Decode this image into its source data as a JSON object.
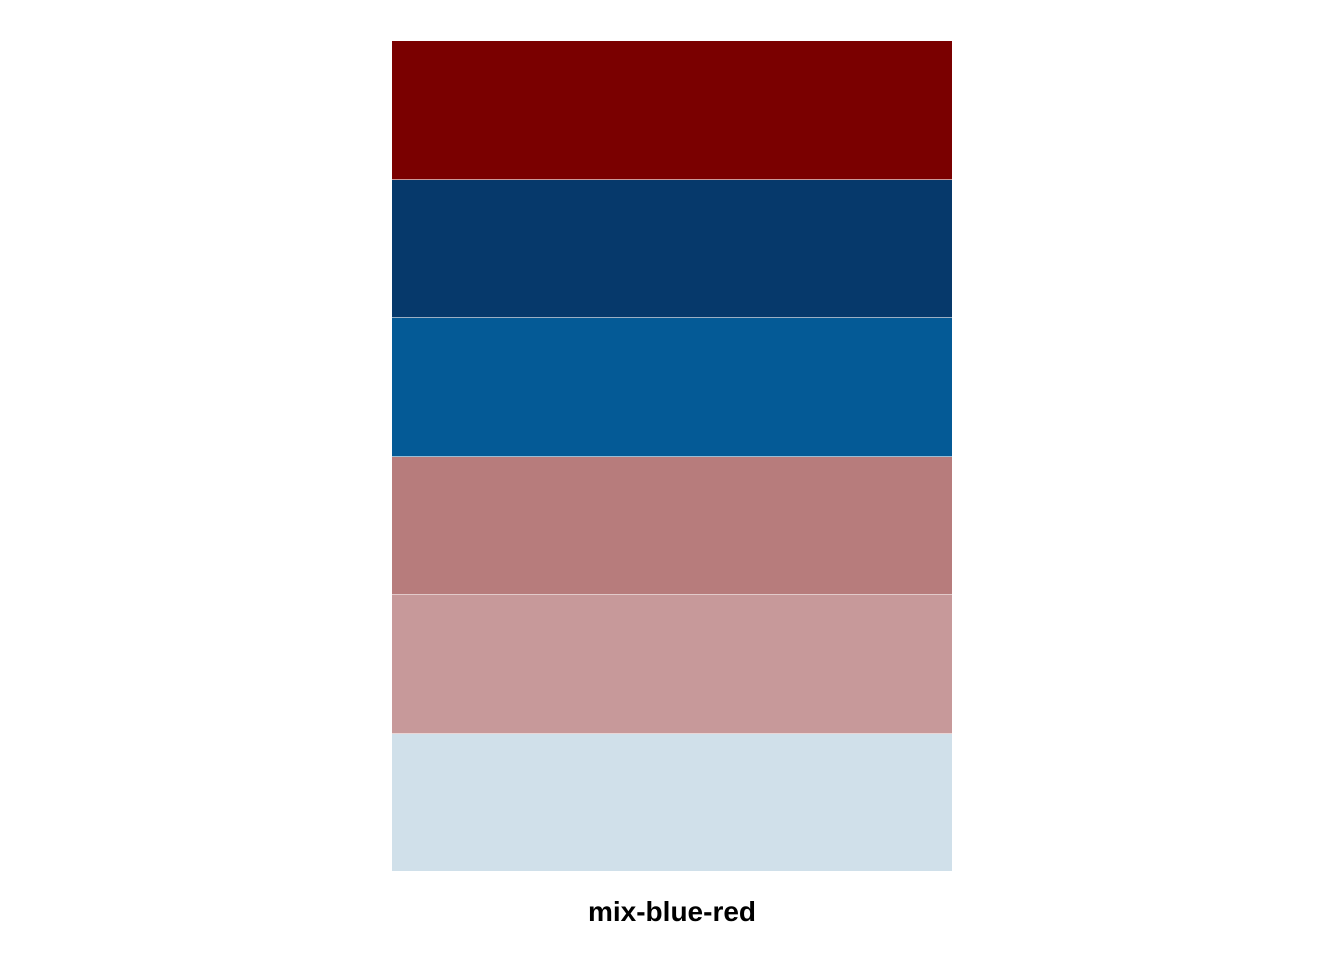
{
  "palette": {
    "name": "mix-blue-red",
    "swatches": [
      {
        "color": "#7a0000"
      },
      {
        "color": "#06396b"
      },
      {
        "color": "#045a96"
      },
      {
        "color": "#b77c7c"
      },
      {
        "color": "#c7999a"
      },
      {
        "color": "#d0e0ea"
      }
    ]
  }
}
